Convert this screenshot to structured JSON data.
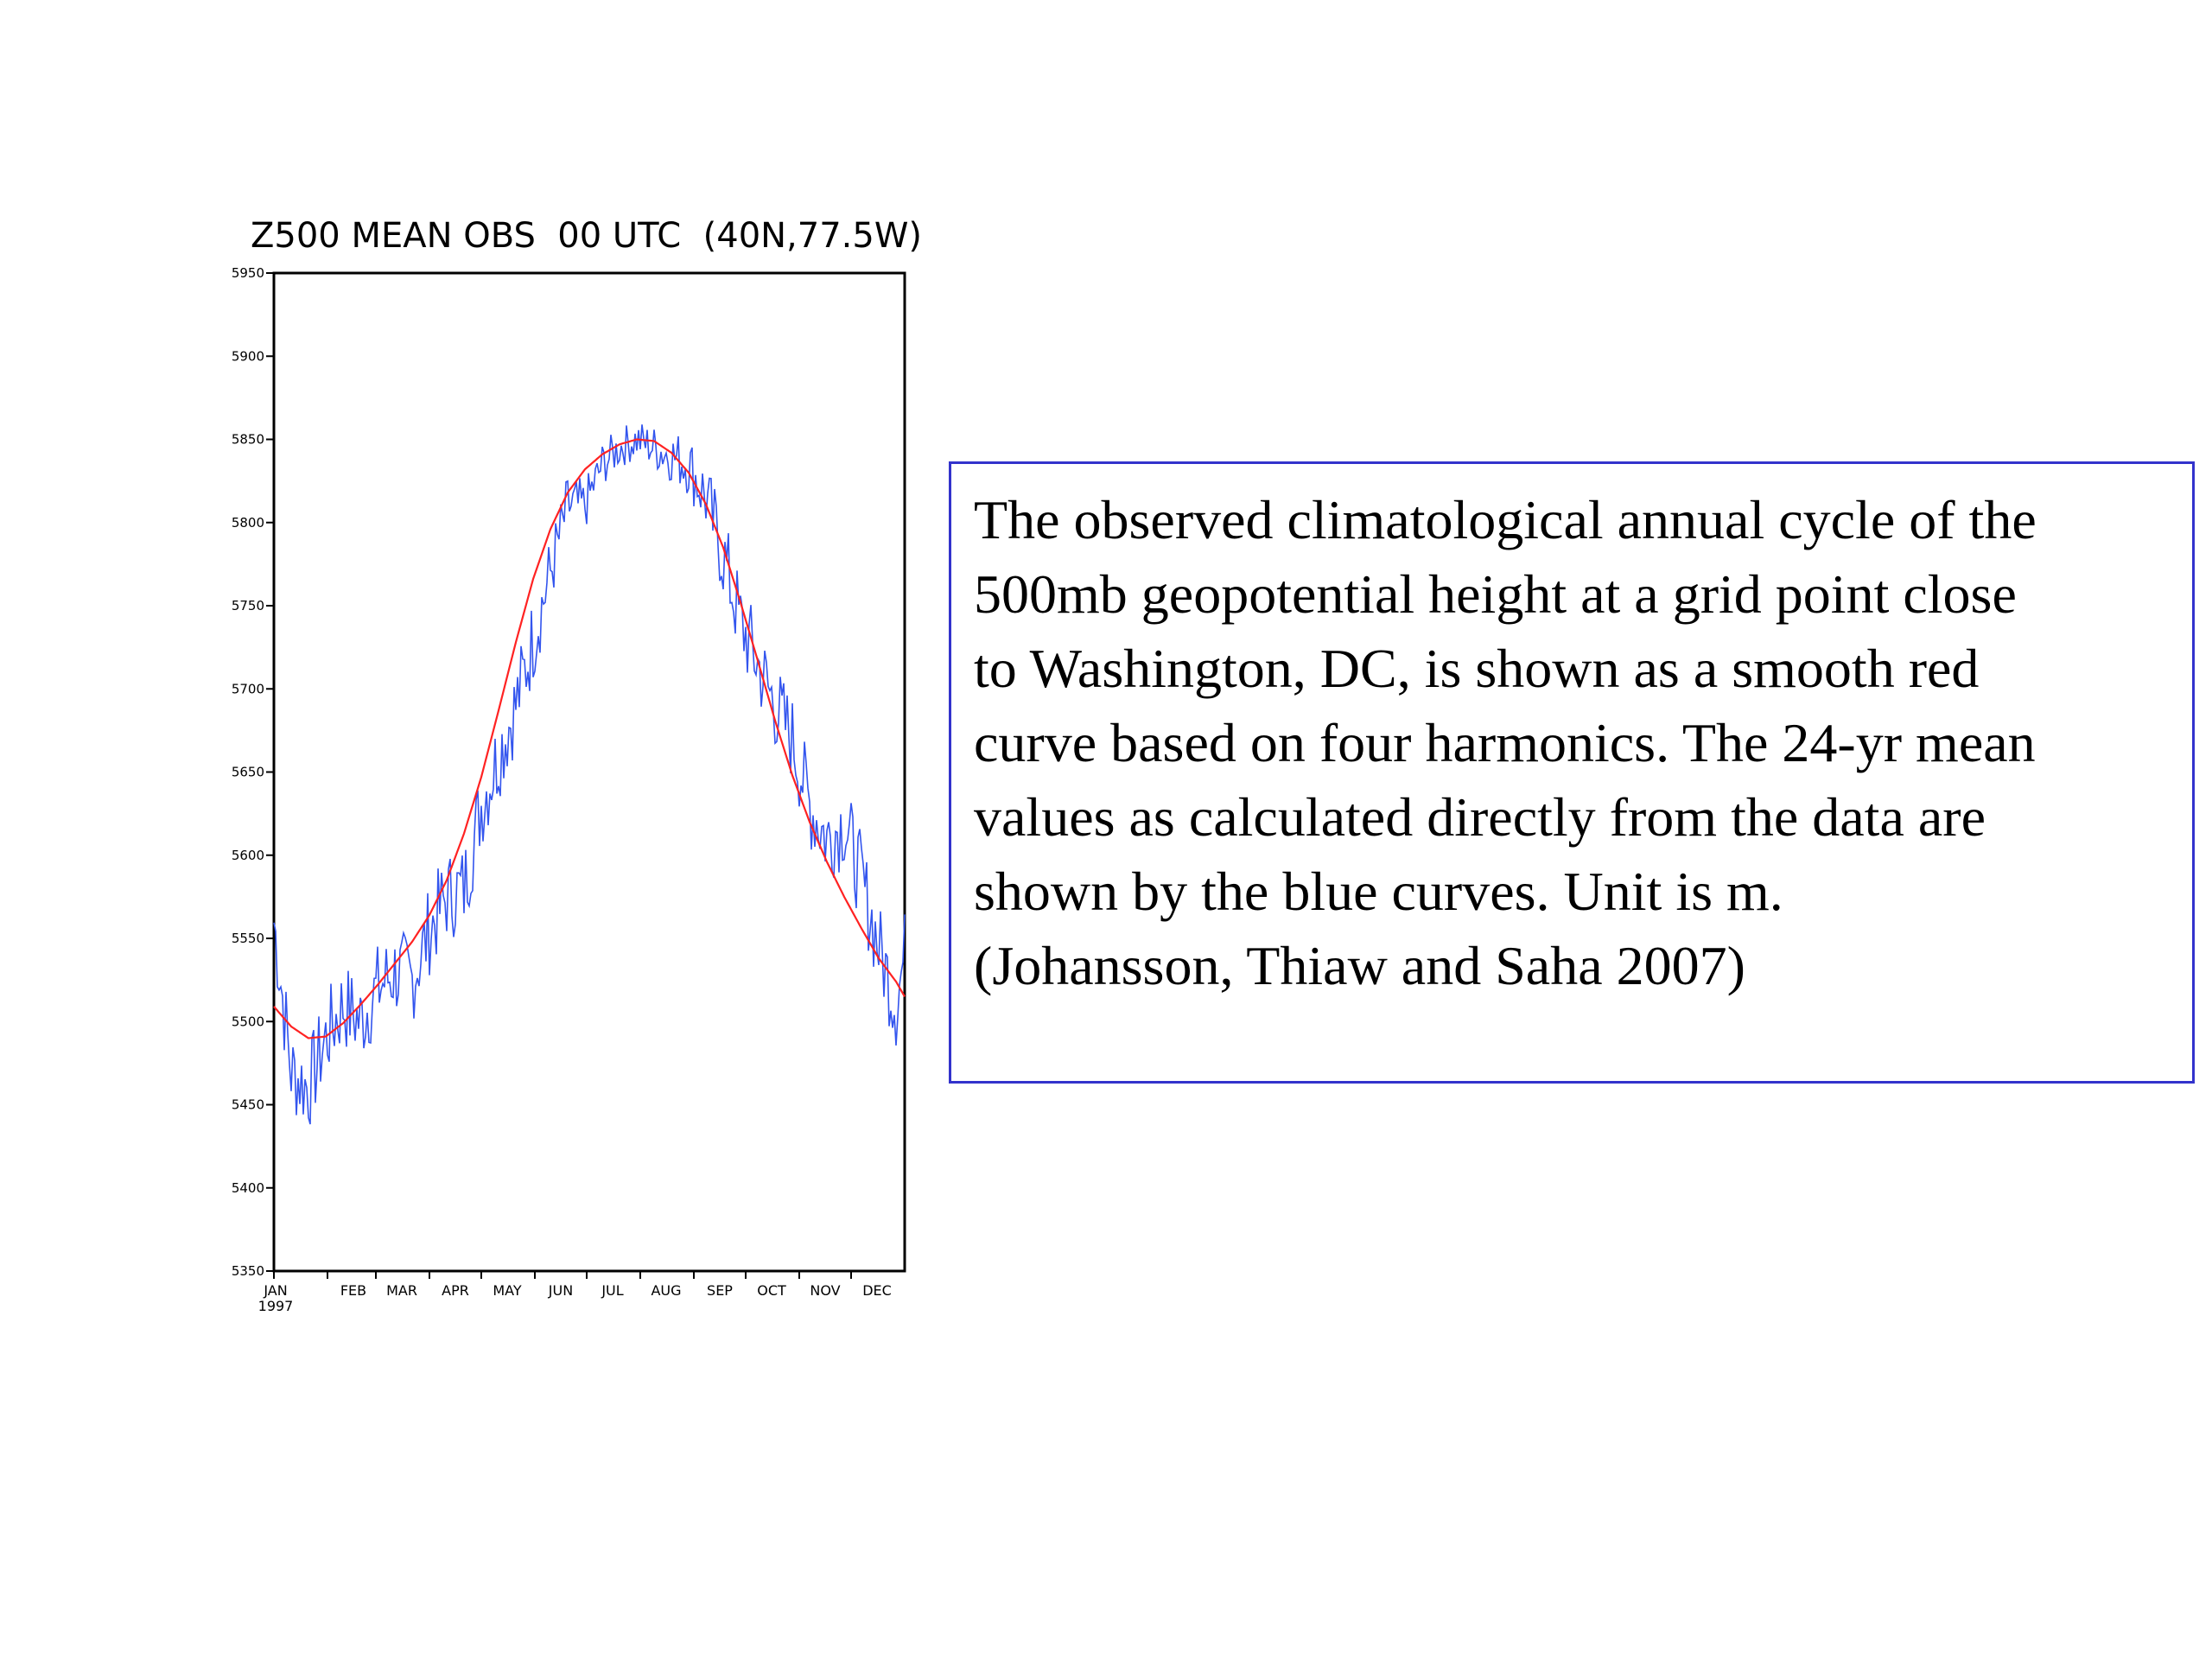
{
  "chart_data": {
    "type": "line",
    "title": "Z500 MEAN OBS  00 UTC  (40N,77.5W)",
    "ylim": [
      5350,
      5950
    ],
    "yticks": [
      "5950",
      "5900",
      "5850",
      "5800",
      "5750",
      "5700",
      "5650",
      "5600",
      "5550",
      "5500",
      "5450",
      "5400",
      "5350"
    ],
    "xlim": [
      0,
      365
    ],
    "x_labels": [
      {
        "label": "JAN",
        "sub": "1997",
        "day": 0
      },
      {
        "label": "FEB",
        "day": 31
      },
      {
        "label": "MAR",
        "day": 59
      },
      {
        "label": "APR",
        "day": 90
      },
      {
        "label": "MAY",
        "day": 120
      },
      {
        "label": "JUN",
        "day": 151
      },
      {
        "label": "JUL",
        "day": 181
      },
      {
        "label": "AUG",
        "day": 212
      },
      {
        "label": "SEP",
        "day": 243
      },
      {
        "label": "OCT",
        "day": 273
      },
      {
        "label": "NOV",
        "day": 304
      },
      {
        "label": "DEC",
        "day": 334
      }
    ],
    "grid": false,
    "legend": "none",
    "series": [
      {
        "color": "#3355ee",
        "x": [
          0,
          10,
          20,
          30,
          40,
          50,
          60,
          70,
          80,
          90,
          100,
          110,
          120,
          130,
          140,
          150,
          160,
          170,
          180,
          190,
          200,
          210,
          220,
          230,
          240,
          250,
          260,
          270,
          280,
          290,
          300,
          310,
          320,
          330,
          340,
          350,
          360,
          365
        ],
        "values": [
          5560,
          5470,
          5460,
          5490,
          5510,
          5500,
          5520,
          5530,
          5525,
          5555,
          5575,
          5580,
          5630,
          5660,
          5690,
          5730,
          5770,
          5810,
          5810,
          5835,
          5845,
          5850,
          5845,
          5840,
          5835,
          5815,
          5780,
          5740,
          5715,
          5690,
          5670,
          5630,
          5610,
          5620,
          5585,
          5545,
          5510,
          5540
        ]
      },
      {
        "color": "#ff2222",
        "x": [
          0,
          10,
          20,
          30,
          40,
          50,
          60,
          70,
          80,
          90,
          100,
          110,
          120,
          130,
          140,
          150,
          160,
          170,
          180,
          190,
          200,
          210,
          220,
          230,
          240,
          250,
          260,
          270,
          280,
          290,
          300,
          310,
          320,
          330,
          340,
          350,
          360,
          365
        ],
        "values": [
          5509,
          5497,
          5490,
          5491,
          5499,
          5510,
          5522,
          5535,
          5548,
          5564,
          5585,
          5613,
          5647,
          5687,
          5728,
          5766,
          5796,
          5818,
          5832,
          5841,
          5847,
          5850,
          5849,
          5842,
          5830,
          5811,
          5785,
          5752,
          5717,
          5681,
          5648,
          5620,
          5596,
          5575,
          5556,
          5538,
          5524,
          5515
        ]
      }
    ]
  },
  "caption": {
    "lines": [
      "The observed climatological annual cycle of the",
      "500mb geopotential height at a grid point close",
      "to Washington, DC, is shown as a smooth red",
      "curve based on four harmonics. The 24-yr mean",
      "values as calculated directly from the data are",
      "shown by the blue curves. Unit is m.",
      "(Johansson, Thiaw and Saha  2007)"
    ]
  }
}
